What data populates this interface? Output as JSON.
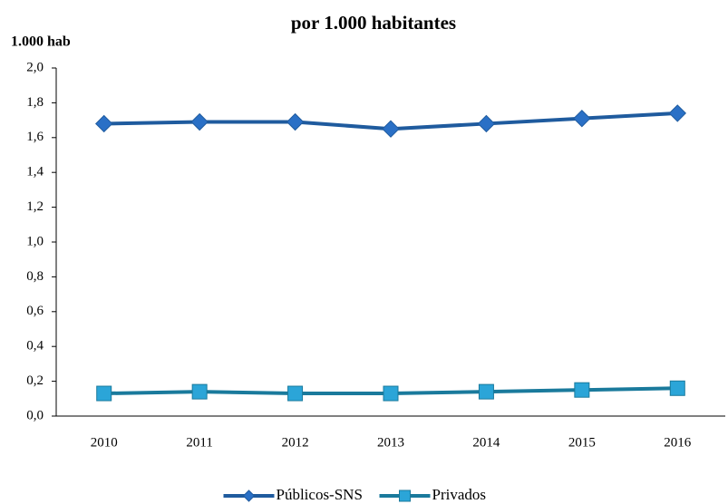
{
  "chart_data": {
    "type": "line",
    "title": "por 1.000 habitantes",
    "y_label": "1.000 hab",
    "categories": [
      "2010",
      "2011",
      "2012",
      "2013",
      "2014",
      "2015",
      "2016"
    ],
    "series": [
      {
        "name": "Públicos-SNS",
        "color": "#1f5b9e",
        "marker_color": "#2a70c6",
        "marker": "diamond",
        "values": [
          1.68,
          1.69,
          1.69,
          1.65,
          1.68,
          1.71,
          1.74
        ]
      },
      {
        "name": "Privados",
        "color": "#1a7a9c",
        "marker_color": "#2ba5d8",
        "marker": "square",
        "values": [
          0.13,
          0.14,
          0.13,
          0.13,
          0.14,
          0.15,
          0.16
        ]
      }
    ],
    "ylim": [
      0,
      2
    ],
    "yticks": [
      {
        "value": 0,
        "label": "0,0"
      },
      {
        "value": 0.2,
        "label": "0,2"
      },
      {
        "value": 0.4,
        "label": "0,4"
      },
      {
        "value": 0.6,
        "label": "0,6"
      },
      {
        "value": 0.8,
        "label": "0,8"
      },
      {
        "value": 1,
        "label": "1,0"
      },
      {
        "value": 1.2,
        "label": "1,2"
      },
      {
        "value": 1.4,
        "label": "1,4"
      },
      {
        "value": 1.6,
        "label": "1,6"
      },
      {
        "value": 1.8,
        "label": "1,8"
      },
      {
        "value": 2,
        "label": "2,0"
      }
    ],
    "grid": false,
    "legend": "bottom"
  }
}
